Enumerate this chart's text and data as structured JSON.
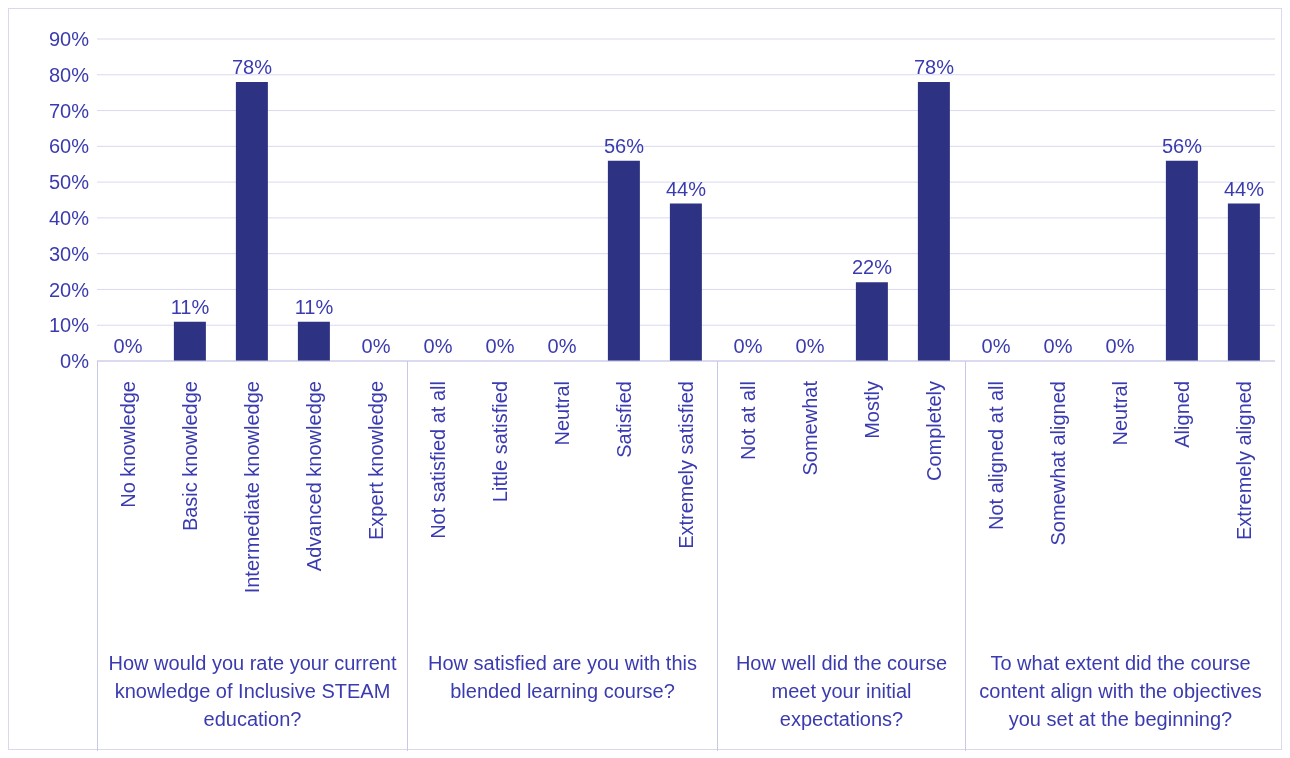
{
  "chart_data": [
    {
      "type": "bar",
      "xlabel": "How would you rate your current knowledge of Inclusive STEAM education?",
      "categories": [
        "No knowledge",
        "Basic knowledge",
        "Intermediate knowledge",
        "Advanced knowledge",
        "Expert knowledge"
      ],
      "values": [
        0,
        11,
        78,
        11,
        0
      ],
      "value_labels": [
        "0%",
        "11%",
        "78%",
        "11%",
        "0%"
      ],
      "color": "#2e3282",
      "ylim": [
        0,
        90
      ],
      "yticks": [
        {
          "value": 0,
          "label": "0%"
        },
        {
          "value": 10,
          "label": "10%"
        },
        {
          "value": 20,
          "label": "20%"
        },
        {
          "value": 30,
          "label": "30%"
        },
        {
          "value": 40,
          "label": "40%"
        },
        {
          "value": 50,
          "label": "50%"
        },
        {
          "value": 60,
          "label": "60%"
        },
        {
          "value": 70,
          "label": "70%"
        },
        {
          "value": 80,
          "label": "80%"
        },
        {
          "value": 90,
          "label": "90%"
        }
      ],
      "grid": "y"
    },
    {
      "type": "bar",
      "xlabel": "How satisfied are you with this blended learning course?",
      "categories": [
        "Not satisfied at all",
        "Little satisfied",
        "Neutral",
        "Satisfied",
        "Extremely satisfied"
      ],
      "values": [
        0,
        0,
        0,
        56,
        44
      ],
      "value_labels": [
        "0%",
        "0%",
        "0%",
        "56%",
        "44%"
      ],
      "color": "#2e3282",
      "ylim": [
        0,
        90
      ],
      "grid": "y",
      "tick_labels": "x"
    },
    {
      "type": "bar",
      "xlabel": "How well did the course meet your initial expectations?",
      "categories": [
        "Not at all",
        "Somewhat",
        "Mostly",
        "Completely"
      ],
      "values": [
        0,
        0,
        22,
        78
      ],
      "value_labels": [
        "0%",
        "0%",
        "22%",
        "78%"
      ],
      "color": "#2e3282",
      "ylim": [
        0,
        90
      ],
      "grid": "y",
      "tick_labels": "x"
    },
    {
      "type": "bar",
      "xlabel": "To what extent did the course content align with the objectives you set at the beginning?",
      "categories": [
        "Not aligned at all",
        "Somewhat aligned",
        "Neutral",
        "Aligned",
        "Extremely aligned"
      ],
      "values": [
        0,
        0,
        0,
        56,
        44
      ],
      "value_labels": [
        "0%",
        "0%",
        "0%",
        "56%",
        "44%"
      ],
      "color": "#2e3282",
      "ylim": [
        0,
        90
      ],
      "grid": "y",
      "tick_labels": "x"
    }
  ]
}
